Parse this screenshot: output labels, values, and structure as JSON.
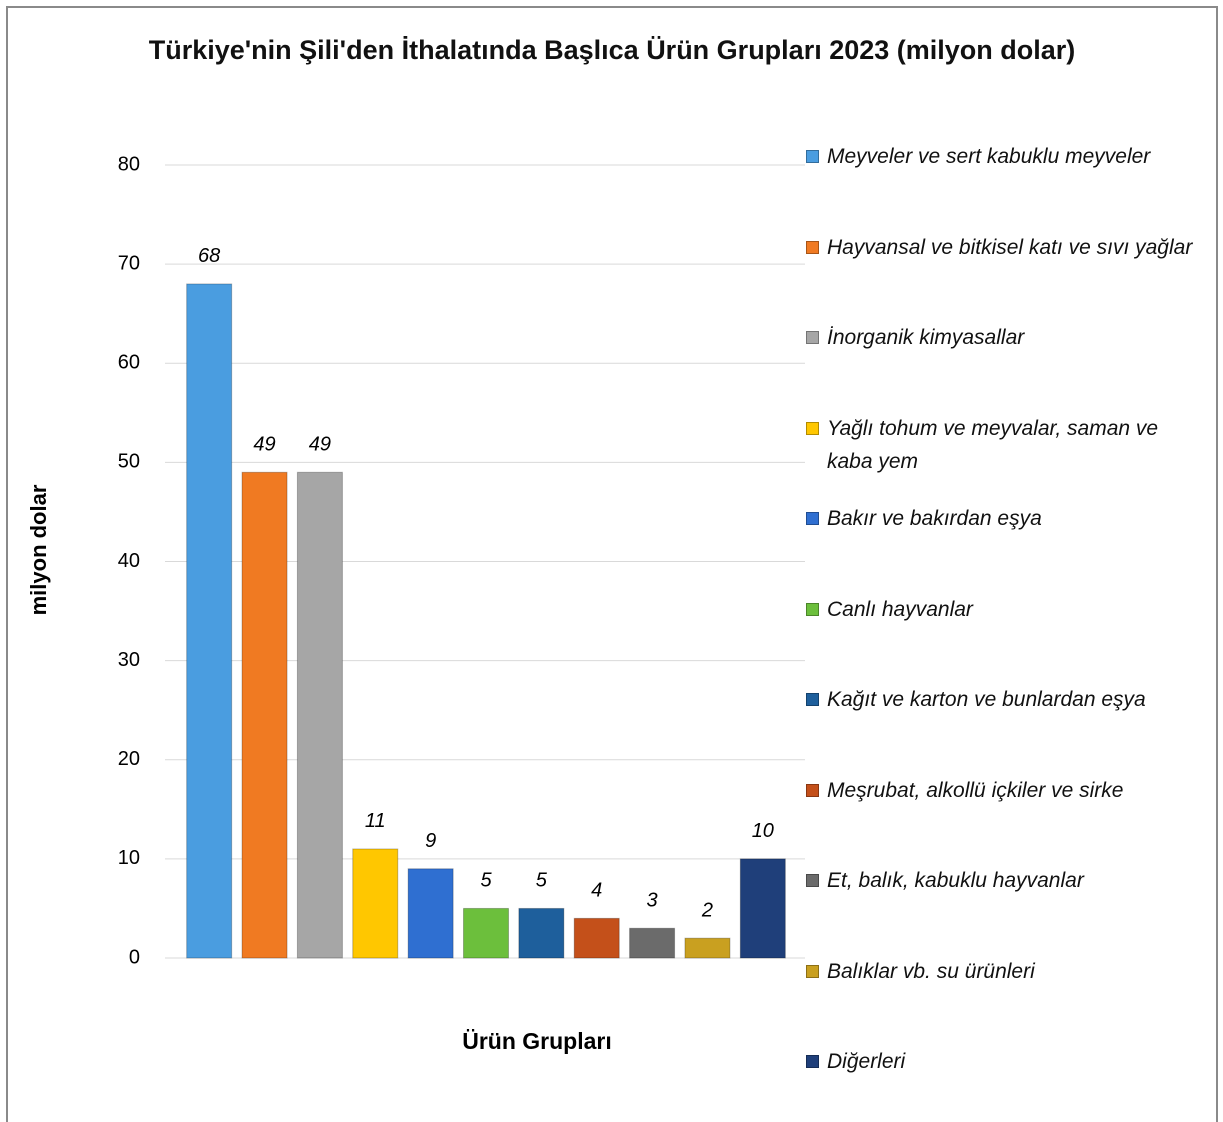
{
  "chart_data": {
    "type": "bar",
    "title": "Türkiye'nin Şili'den İthalatında Başlıca Ürün Grupları 2023 (milyon dolar)",
    "xlabel": "Ürün Grupları",
    "ylabel": "milyon dolar",
    "categories": [
      "Meyveler ve sert kabuklu meyveler",
      "Hayvansal ve bitkisel katı ve sıvı yağlar",
      "İnorganik kimyasallar",
      "Yağlı tohum ve meyvalar, saman ve kaba yem",
      "Bakır ve bakırdan eşya",
      "Canlı hayvanlar",
      "Kağıt ve karton ve bunlardan eşya",
      "Meşrubat, alkollü içkiler ve sirke",
      "Et, balık, kabuklu hayvanlar",
      "Balıklar vb. su ürünleri",
      "Diğerleri"
    ],
    "values": [
      68,
      49,
      49,
      11,
      9,
      5,
      5,
      4,
      3,
      2,
      10
    ],
    "colors": [
      "#4a9de0",
      "#f07a22",
      "#a6a6a6",
      "#ffc700",
      "#2f6fd1",
      "#6cbf3c",
      "#1e5f9c",
      "#c4501a",
      "#6b6b6b",
      "#c9a020",
      "#1f3f7a"
    ],
    "ylim": [
      0,
      80
    ],
    "yticks": [
      0,
      10,
      20,
      30,
      40,
      50,
      60,
      70,
      80
    ],
    "grid": true,
    "legend": "right"
  }
}
